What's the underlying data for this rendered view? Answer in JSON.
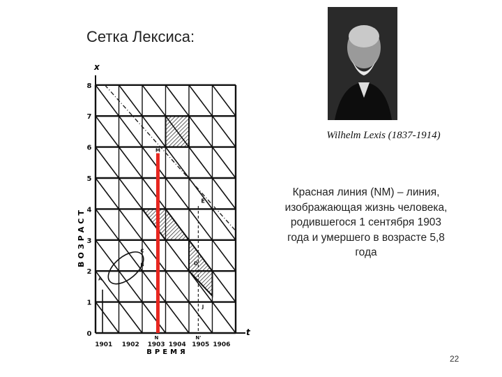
{
  "title": "Сетка Лексиса:",
  "caption": "Wilhelm Lexis (1837-1914)",
  "description": "Красная линия (NM) – линия, изображающая жизнь человека, родившегося 1 сентября 1903 года и умершего в возрасте 5,8 года",
  "page_number": "22",
  "diagram": {
    "x_axis_label": "ВРЕМЯ",
    "y_axis_label": "ВОЗРАСТ",
    "x_axis_symbol": "t",
    "y_axis_symbol": "x",
    "years": [
      "1901",
      "1902",
      "1903",
      "1904",
      "1905",
      "1906"
    ],
    "age_ticks": [
      "0",
      "1",
      "2",
      "3",
      "4",
      "5",
      "6",
      "7",
      "8"
    ],
    "point_labels": {
      "N": "N",
      "M": "M",
      "N_prime": "N'",
      "E": "E",
      "C": "C",
      "A": "A",
      "B": "B",
      "D": "D",
      "J": "J"
    },
    "life_line": {
      "birth_year_fraction": 1903.67,
      "age_at_death": 5.8,
      "color": "#e8261f"
    }
  }
}
